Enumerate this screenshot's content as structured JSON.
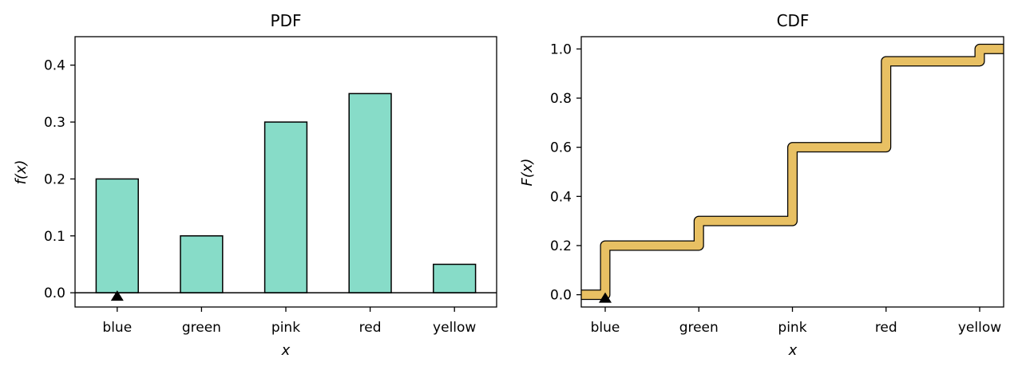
{
  "chart_data": [
    {
      "type": "bar",
      "title": "PDF",
      "xlabel": "x",
      "ylabel": "f(x)",
      "categories": [
        "blue",
        "green",
        "pink",
        "red",
        "yellow"
      ],
      "values": [
        0.2,
        0.1,
        0.3,
        0.35,
        0.05
      ],
      "ylim": [
        -0.025,
        0.45
      ],
      "yticks": [
        0.0,
        0.1,
        0.2,
        0.3,
        0.4
      ],
      "ytick_labels": [
        "0.0",
        "0.1",
        "0.2",
        "0.3",
        "0.4"
      ],
      "bar_color": "#87dcc8",
      "edge_color": "#000000",
      "marker": {
        "category": "blue",
        "value": 0.0,
        "shape": "triangle-up"
      },
      "grid": false
    },
    {
      "type": "line",
      "step": "mid",
      "title": "CDF",
      "xlabel": "x",
      "ylabel": "F(x)",
      "categories": [
        "blue",
        "green",
        "pink",
        "red",
        "yellow"
      ],
      "values": [
        0.2,
        0.3,
        0.6,
        0.95,
        1.0
      ],
      "start_value": 0.0,
      "ylim": [
        -0.05,
        1.05
      ],
      "yticks": [
        0.0,
        0.2,
        0.4,
        0.6,
        0.8,
        1.0
      ],
      "ytick_labels": [
        "0.0",
        "0.2",
        "0.4",
        "0.6",
        "0.8",
        "1.0"
      ],
      "line_color": "#e8c063",
      "edge_color": "#000000",
      "marker": {
        "category": "blue",
        "value": 0.0,
        "shape": "triangle-up"
      },
      "grid": false
    }
  ]
}
